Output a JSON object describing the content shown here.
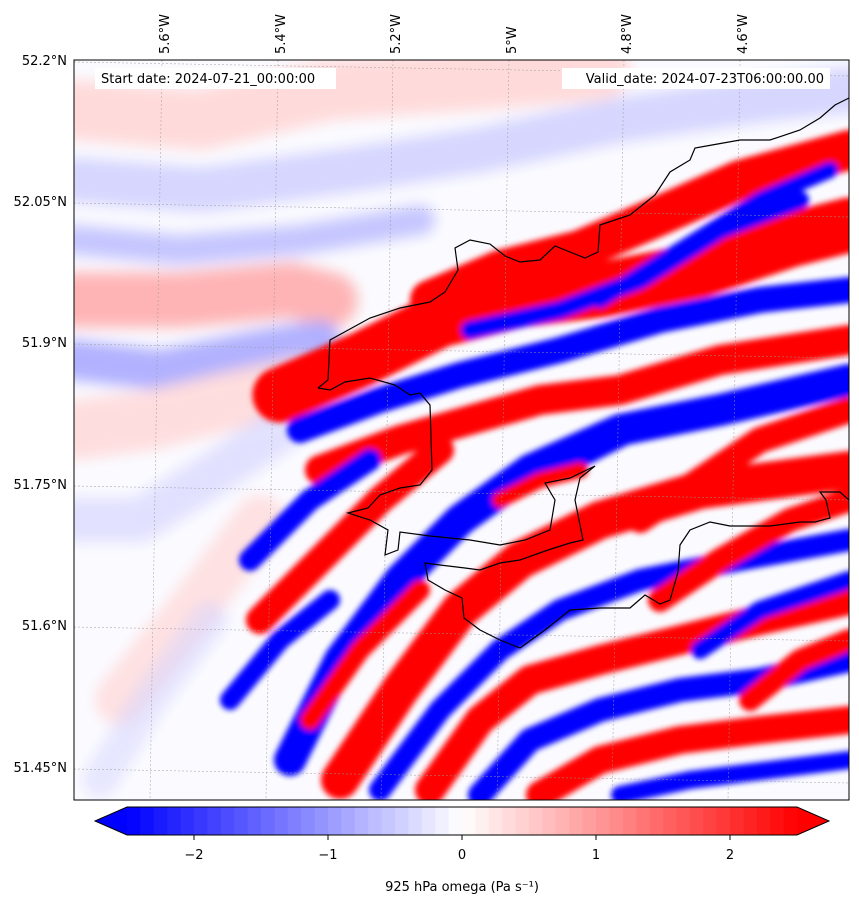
{
  "chart_data": {
    "type": "heatmap",
    "annotations": {
      "start_date": "Start date: 2024-07-21_00:00:00",
      "valid_date": "Valid_date: 2024-07-23T06:00:00.00"
    },
    "top_tick_labels": [
      "5.6°W",
      "5.4°W",
      "5.2°W",
      "5°W",
      "4.8°W",
      "4.6°W"
    ],
    "left_tick_labels": [
      "52.2°N",
      "52.05°N",
      "51.9°N",
      "51.75°N",
      "51.6°N",
      "51.45°N"
    ],
    "xlim": [
      -5.72,
      -4.47
    ],
    "ylim": [
      51.42,
      52.2
    ],
    "colorbar": {
      "ticks": [
        -2,
        -1,
        0,
        1,
        2
      ],
      "tick_labels": [
        "−2",
        "−1",
        "0",
        "1",
        "2"
      ],
      "range": [
        -2.5,
        2.5
      ],
      "label": "925 hPa omega (Pa s⁻¹)",
      "extend": "both"
    },
    "colormap": {
      "low": "#0000ff",
      "mid": "#ffffff",
      "high": "#ff0000"
    },
    "grid": true,
    "coastline_color": "#000000"
  }
}
